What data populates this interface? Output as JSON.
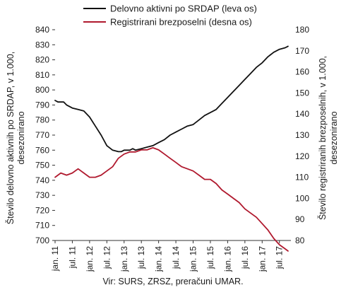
{
  "chart_data": {
    "type": "line",
    "source": "Vir: SURS, ZRSZ, preračuni UMAR.",
    "grid": false,
    "legend_position": "top",
    "left_axis": {
      "label_line1": "Število delovno aktivnih po SRDAP, v 1.000,",
      "label_line2": "desezonirano",
      "ylim": [
        700,
        840
      ],
      "ticks": [
        700,
        710,
        720,
        730,
        740,
        750,
        760,
        770,
        780,
        790,
        800,
        810,
        820,
        830,
        840
      ]
    },
    "right_axis": {
      "label_line1": "Število registriranih brezposelnih, v 1.000,",
      "label_line2": "desezonirano",
      "ylim": [
        80,
        180
      ],
      "ticks": [
        80,
        90,
        100,
        110,
        120,
        130,
        140,
        150,
        160,
        170,
        180
      ]
    },
    "x_axis": {
      "tick_labels": [
        "jan. 11",
        "jul. 11",
        "jan. 12",
        "jul. 12",
        "jan. 13",
        "jul. 13",
        "jan. 14",
        "jul. 14",
        "jan. 15",
        "jul. 15",
        "jan. 16",
        "jul. 16",
        "jan. 17",
        "jul. 17"
      ],
      "start": "2011-01",
      "end": "2017-10"
    },
    "series": [
      {
        "name": "Delovno aktivni po SRDAP (leva os)",
        "axis": "left",
        "color": "#111111",
        "x_months": [
          0,
          1,
          2,
          3,
          4,
          5,
          6,
          8,
          10,
          12,
          14,
          16,
          18,
          20,
          22,
          23,
          24,
          25,
          26,
          27,
          28,
          30,
          32,
          34,
          36,
          38,
          40,
          42,
          44,
          46,
          48,
          50,
          52,
          54,
          56,
          58,
          60,
          62,
          64,
          66,
          68,
          70,
          72,
          74,
          76,
          78,
          80,
          81
        ],
        "values": [
          793,
          792,
          792,
          792,
          790,
          789,
          788,
          787,
          786,
          782,
          776,
          770,
          763,
          760,
          759,
          759,
          760,
          760,
          760,
          761,
          760,
          761,
          762,
          763,
          765,
          767,
          770,
          772,
          774,
          776,
          777,
          780,
          783,
          785,
          787,
          791,
          795,
          799,
          803,
          807,
          811,
          815,
          818,
          822,
          825,
          827,
          828,
          829
        ]
      },
      {
        "name": "Registrirani brezposelni (desna os)",
        "axis": "right",
        "color": "#b0192e",
        "x_months": [
          0,
          2,
          4,
          6,
          8,
          10,
          12,
          14,
          16,
          18,
          20,
          22,
          24,
          26,
          28,
          30,
          32,
          34,
          36,
          38,
          40,
          42,
          44,
          46,
          48,
          50,
          52,
          54,
          56,
          58,
          60,
          62,
          64,
          66,
          68,
          70,
          72,
          74,
          76,
          78,
          80,
          81
        ],
        "values": [
          110,
          112,
          111,
          112,
          114,
          112,
          110,
          110,
          111,
          113,
          115,
          119,
          121,
          122,
          122,
          123,
          123,
          124,
          123,
          121,
          119,
          117,
          115,
          114,
          113,
          111,
          109,
          109,
          107,
          104,
          102,
          100,
          98,
          95,
          93,
          91,
          88,
          85,
          81,
          78,
          76,
          75
        ]
      }
    ]
  }
}
